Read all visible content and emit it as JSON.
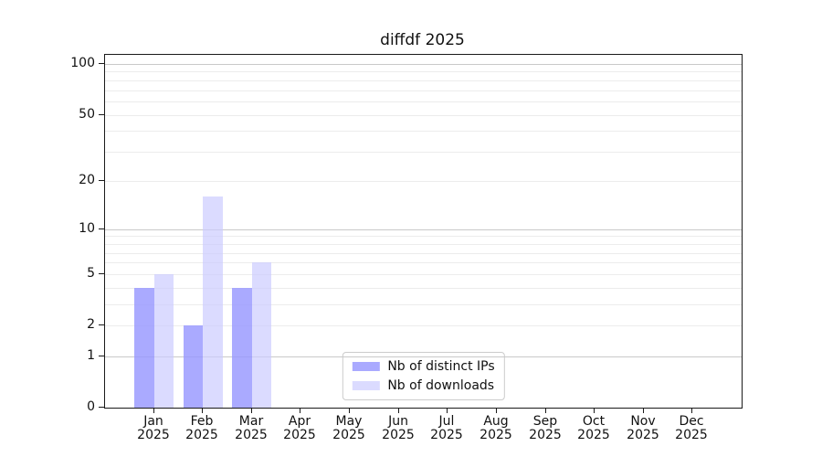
{
  "chart_data": {
    "type": "bar",
    "title": "diffdf 2025",
    "categories": [
      "Jan 2025",
      "Feb 2025",
      "Mar 2025",
      "Apr 2025",
      "May 2025",
      "Jun 2025",
      "Jul 2025",
      "Aug 2025",
      "Sep 2025",
      "Oct 2025",
      "Nov 2025",
      "Dec 2025"
    ],
    "category_months": [
      "Jan",
      "Feb",
      "Mar",
      "Apr",
      "May",
      "Jun",
      "Jul",
      "Aug",
      "Sep",
      "Oct",
      "Nov",
      "Dec"
    ],
    "category_year": "2025",
    "series": [
      {
        "name": "Nb of distinct IPs",
        "color": "rgba(153,153,255,0.83)",
        "values": [
          4,
          2,
          4,
          0,
          0,
          0,
          0,
          0,
          0,
          0,
          0,
          0
        ]
      },
      {
        "name": "Nb of downloads",
        "color": "rgba(204,204,255,0.70)",
        "values": [
          5,
          16,
          6,
          0,
          0,
          0,
          0,
          0,
          0,
          0,
          0,
          0
        ]
      }
    ],
    "xlabel": "",
    "ylabel": "",
    "yscale": "log10(1+v)",
    "yticks": [
      0,
      1,
      2,
      5,
      10,
      20,
      50,
      100
    ],
    "ylim": [
      0,
      113
    ],
    "grid": true,
    "gridlines": {
      "minor": [
        2,
        3,
        4,
        5,
        6,
        7,
        8,
        9,
        20,
        30,
        40,
        50,
        60,
        70,
        80,
        90
      ],
      "major": [
        1,
        10,
        100
      ]
    },
    "legend_position": "lower center",
    "colors": {
      "distinct_ips": "#aaaaf8",
      "downloads": "#dbdbfa",
      "grid_minor": "#ececec",
      "grid_major": "#c9c9c9",
      "spine": "#1a1a1a",
      "background": "#ffffff"
    }
  }
}
